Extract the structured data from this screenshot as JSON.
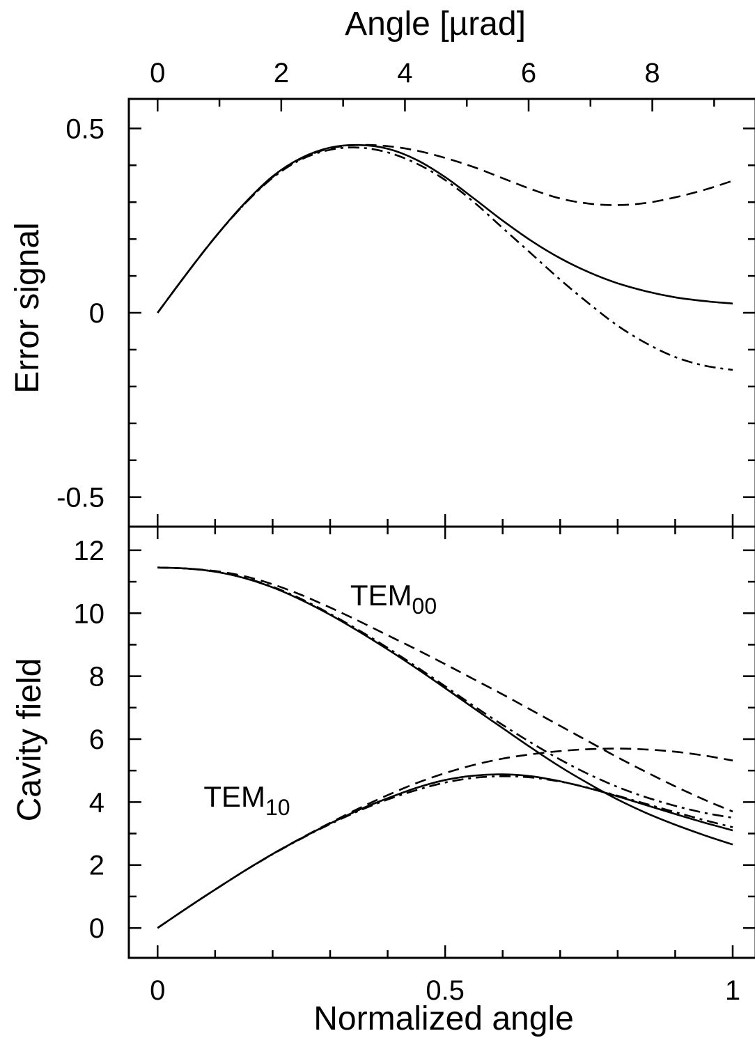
{
  "chart_data": [
    {
      "panel": "top",
      "type": "line",
      "ylabel": "Error signal",
      "x2label": "Angle [µrad]",
      "ylim": [
        -0.58,
        0.58
      ],
      "yticks": [
        -0.5,
        0,
        0.5
      ],
      "ytick_labels": [
        "-0.5",
        "0",
        "0.5"
      ],
      "x2ticks": [
        0,
        2,
        4,
        6,
        8
      ],
      "x2tick_labels": [
        "0",
        "2",
        "4",
        "6",
        "8"
      ],
      "x2_per_normalized": 9.3,
      "series": [
        {
          "style": "solid",
          "x": [
            0,
            0.05,
            0.1,
            0.15,
            0.2,
            0.25,
            0.3,
            0.35,
            0.4,
            0.45,
            0.5,
            0.55,
            0.6,
            0.65,
            0.7,
            0.75,
            0.8,
            0.85,
            0.9,
            0.95,
            1.0
          ],
          "y": [
            0,
            0.105,
            0.205,
            0.295,
            0.37,
            0.42,
            0.448,
            0.455,
            0.445,
            0.415,
            0.368,
            0.31,
            0.25,
            0.195,
            0.148,
            0.11,
            0.08,
            0.058,
            0.042,
            0.032,
            0.025
          ]
        },
        {
          "style": "dashed",
          "x": [
            0,
            0.05,
            0.1,
            0.15,
            0.2,
            0.25,
            0.3,
            0.35,
            0.4,
            0.45,
            0.5,
            0.55,
            0.6,
            0.65,
            0.7,
            0.75,
            0.8,
            0.85,
            0.9,
            0.95,
            1.0
          ],
          "y": [
            0,
            0.105,
            0.205,
            0.293,
            0.368,
            0.418,
            0.446,
            0.455,
            0.452,
            0.44,
            0.42,
            0.395,
            0.365,
            0.335,
            0.31,
            0.296,
            0.292,
            0.298,
            0.313,
            0.333,
            0.358
          ]
        },
        {
          "style": "dash-dot",
          "x": [
            0,
            0.05,
            0.1,
            0.15,
            0.2,
            0.25,
            0.3,
            0.35,
            0.4,
            0.45,
            0.5,
            0.55,
            0.6,
            0.65,
            0.7,
            0.75,
            0.8,
            0.85,
            0.9,
            0.95,
            1.0
          ],
          "y": [
            0,
            0.105,
            0.205,
            0.293,
            0.366,
            0.416,
            0.442,
            0.448,
            0.435,
            0.405,
            0.36,
            0.3,
            0.23,
            0.16,
            0.09,
            0.025,
            -0.035,
            -0.083,
            -0.12,
            -0.143,
            -0.155
          ]
        }
      ]
    },
    {
      "panel": "bottom",
      "type": "line",
      "xlabel": "Normalized angle",
      "ylabel": "Cavity field",
      "xlim": [
        -0.05,
        1.04
      ],
      "xticks": [
        0,
        0.5,
        1
      ],
      "xtick_labels": [
        "0",
        "0.5",
        "1"
      ],
      "ylim": [
        -0.95,
        12.75
      ],
      "yticks": [
        0,
        2,
        4,
        6,
        8,
        10,
        12
      ],
      "ytick_labels": [
        "0",
        "2",
        "4",
        "6",
        "8",
        "10",
        "12"
      ],
      "annotations": [
        {
          "text": "TEM",
          "subscript": "00",
          "x": 0.335,
          "y": 10.25
        },
        {
          "text": "TEM",
          "subscript": "10",
          "x": 0.08,
          "y": 3.85
        }
      ],
      "series": [
        {
          "style": "solid",
          "mode": "TEM00",
          "x": [
            0,
            0.05,
            0.1,
            0.15,
            0.2,
            0.25,
            0.3,
            0.35,
            0.4,
            0.45,
            0.5,
            0.55,
            0.6,
            0.65,
            0.7,
            0.75,
            0.8,
            0.85,
            0.9,
            0.95,
            1.0
          ],
          "y": [
            11.45,
            11.42,
            11.32,
            11.12,
            10.82,
            10.42,
            9.95,
            9.42,
            8.85,
            8.25,
            7.62,
            6.98,
            6.35,
            5.72,
            5.12,
            4.58,
            4.08,
            3.65,
            3.28,
            2.95,
            2.65
          ]
        },
        {
          "style": "dashed",
          "mode": "TEM00",
          "x": [
            0,
            0.05,
            0.1,
            0.15,
            0.2,
            0.25,
            0.3,
            0.35,
            0.4,
            0.45,
            0.5,
            0.55,
            0.6,
            0.65,
            0.7,
            0.75,
            0.8,
            0.85,
            0.9,
            0.95,
            1.0
          ],
          "y": [
            11.45,
            11.42,
            11.34,
            11.18,
            10.92,
            10.58,
            10.18,
            9.75,
            9.3,
            8.85,
            8.38,
            7.9,
            7.42,
            6.92,
            6.42,
            5.92,
            5.42,
            4.95,
            4.5,
            4.08,
            3.7
          ]
        },
        {
          "style": "dash-dot",
          "mode": "TEM00",
          "x": [
            0,
            0.05,
            0.1,
            0.15,
            0.2,
            0.25,
            0.3,
            0.35,
            0.4,
            0.45,
            0.5,
            0.55,
            0.6,
            0.65,
            0.7,
            0.75,
            0.8,
            0.85,
            0.9,
            0.95,
            1.0
          ],
          "y": [
            11.45,
            11.42,
            11.32,
            11.13,
            10.84,
            10.45,
            9.98,
            9.46,
            8.9,
            8.3,
            7.68,
            7.05,
            6.45,
            5.88,
            5.35,
            4.88,
            4.48,
            4.15,
            3.88,
            3.66,
            3.5
          ]
        },
        {
          "style": "solid",
          "mode": "TEM10",
          "x": [
            0,
            0.05,
            0.1,
            0.15,
            0.2,
            0.25,
            0.3,
            0.35,
            0.4,
            0.45,
            0.5,
            0.55,
            0.6,
            0.65,
            0.7,
            0.75,
            0.8,
            0.85,
            0.9,
            0.95,
            1.0
          ],
          "y": [
            0,
            0.62,
            1.22,
            1.8,
            2.35,
            2.85,
            3.32,
            3.75,
            4.12,
            4.45,
            4.7,
            4.84,
            4.88,
            4.82,
            4.66,
            4.44,
            4.18,
            3.9,
            3.62,
            3.35,
            3.1
          ]
        },
        {
          "style": "dashed",
          "mode": "TEM10",
          "x": [
            0,
            0.05,
            0.1,
            0.15,
            0.2,
            0.25,
            0.3,
            0.35,
            0.4,
            0.45,
            0.5,
            0.55,
            0.6,
            0.65,
            0.7,
            0.75,
            0.8,
            0.85,
            0.9,
            0.95,
            1.0
          ],
          "y": [
            0,
            0.62,
            1.22,
            1.8,
            2.35,
            2.86,
            3.34,
            3.8,
            4.22,
            4.6,
            4.92,
            5.18,
            5.38,
            5.52,
            5.62,
            5.68,
            5.7,
            5.67,
            5.6,
            5.48,
            5.32
          ]
        },
        {
          "style": "dash-dot",
          "mode": "TEM10",
          "x": [
            0,
            0.05,
            0.1,
            0.15,
            0.2,
            0.25,
            0.3,
            0.35,
            0.4,
            0.45,
            0.5,
            0.55,
            0.6,
            0.65,
            0.7,
            0.75,
            0.8,
            0.85,
            0.9,
            0.95,
            1.0
          ],
          "y": [
            0,
            0.62,
            1.22,
            1.8,
            2.34,
            2.84,
            3.3,
            3.72,
            4.08,
            4.38,
            4.62,
            4.77,
            4.82,
            4.78,
            4.65,
            4.45,
            4.2,
            3.94,
            3.68,
            3.43,
            3.2
          ]
        }
      ]
    }
  ]
}
